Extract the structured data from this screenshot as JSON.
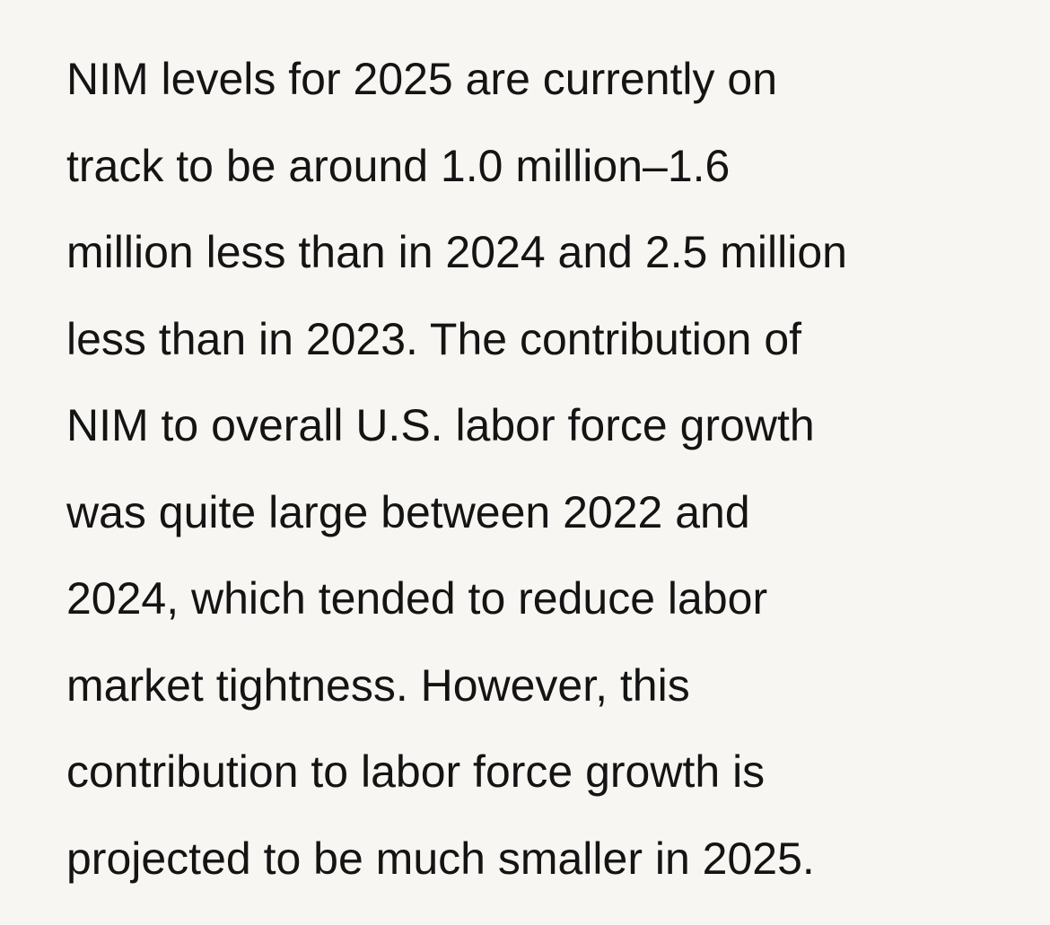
{
  "paragraph": {
    "lines": [
      "NIM levels for 2025 are currently on",
      "track to be around 1.0 million–1.6",
      "million less than in 2024 and 2.5 million",
      "less than in 2023. The contribution of",
      "NIM to overall U.S. labor force growth",
      "was quite large between 2022 and",
      "2024, which tended to reduce labor",
      "market tightness. However, this",
      "contribution to labor force growth is",
      "projected to be much smaller in 2025."
    ]
  },
  "colors": {
    "background": "#f8f6f2",
    "text": "#141414"
  }
}
